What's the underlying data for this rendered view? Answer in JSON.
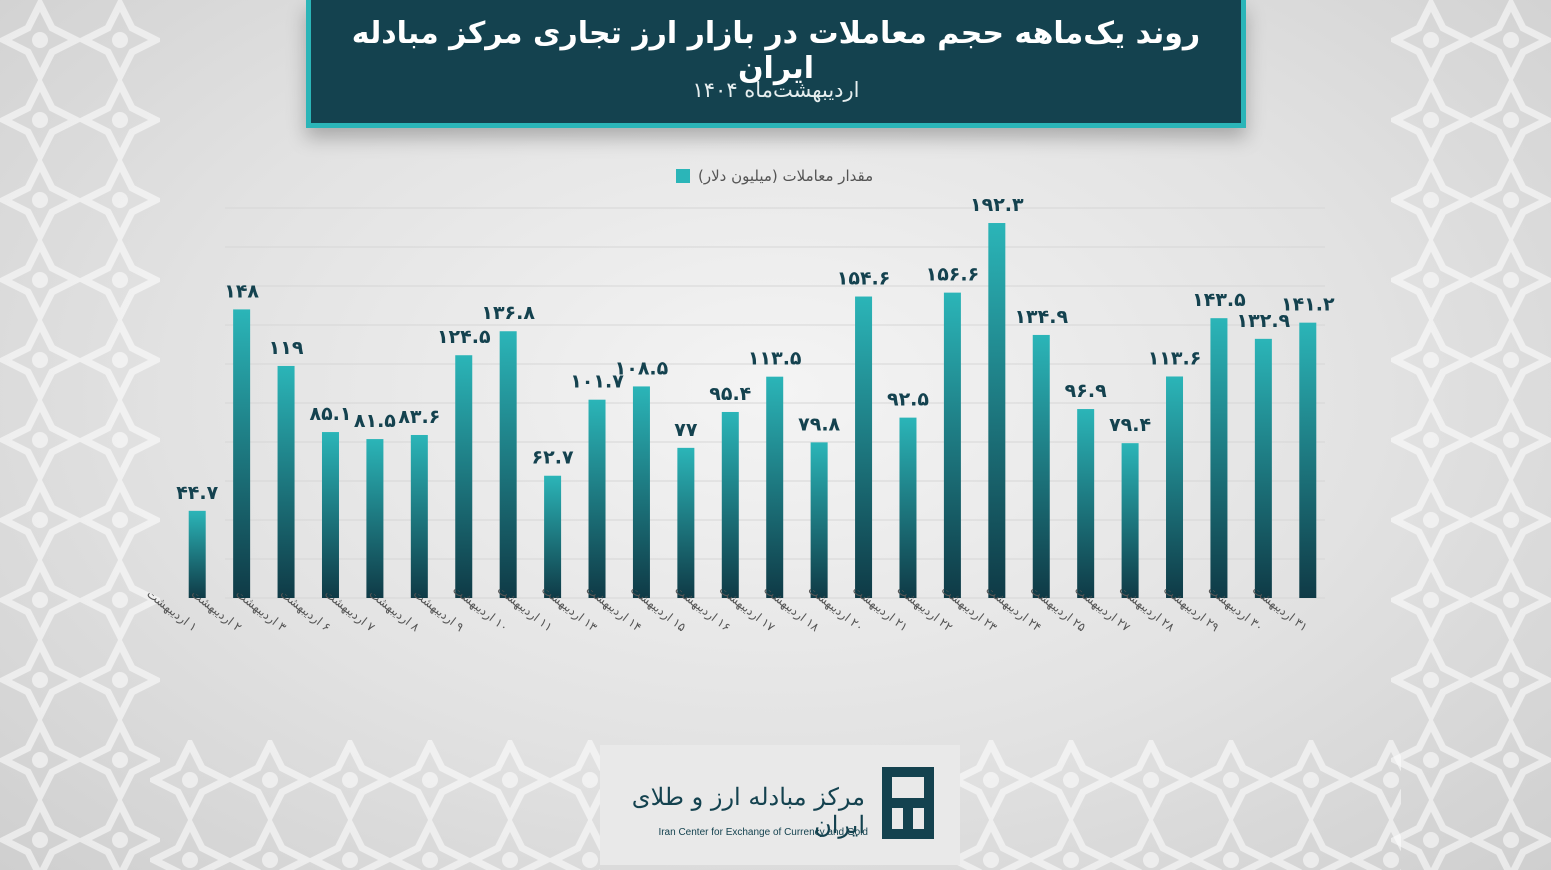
{
  "header": {
    "title": "روند یک‌ماهه حجم معاملات در بازار ارز تجاری مرکز مبادله ایران",
    "subtitle": "اردیبهشت‌ماه ۱۴۰۴"
  },
  "legend": {
    "label": "مقدار معاملات (میلیون دلار)"
  },
  "colors": {
    "bar_top": "#2bb5b8",
    "bar_bottom": "#0f3a46",
    "header_bg": "#14424f",
    "header_border": "#2bb5b8",
    "label_text": "#14424f"
  },
  "chart_data": {
    "type": "bar",
    "series": [
      {
        "name": "مقدار معاملات (میلیون دلار)"
      }
    ],
    "categories": [
      "۱ اردیبهشت",
      "۲ اردیبهشت",
      "۳ اردیبهشت",
      "۶ اردیبهشت",
      "۷ اردیبهشت",
      "۸ اردیبهشت",
      "۹ اردیبهشت",
      "۱۰ اردیبهشت",
      "۱۱ اردیبهشت",
      "۱۳ اردیبهشت",
      "۱۴ اردیبهشت",
      "۱۵ اردیبهشت",
      "۱۶ اردیبهشت",
      "۱۷ اردیبهشت",
      "۱۸ اردیبهشت",
      "۲۰ اردیبهشت",
      "۲۱ اردیبهشت",
      "۲۲ اردیبهشت",
      "۲۳ اردیبهشت",
      "۲۴ اردیبهشت",
      "۲۵ اردیبهشت",
      "۲۷ اردیبهشت",
      "۲۸ اردیبهشت",
      "۲۹ اردیبهشت",
      "۳۰ اردیبهشت",
      "۳۱ اردیبهشت"
    ],
    "values": [
      44.7,
      148,
      119,
      85.1,
      81.5,
      83.6,
      124.5,
      136.8,
      62.7,
      101.7,
      108.5,
      77,
      95.4,
      113.5,
      79.8,
      154.6,
      92.5,
      156.6,
      192.3,
      134.9,
      96.9,
      79.4,
      113.6,
      143.5,
      132.9,
      141.2
    ],
    "value_labels": [
      "۴۴.۷",
      "۱۴۸",
      "۱۱۹",
      "۸۵.۱",
      "۸۱.۵",
      "۸۳.۶",
      "۱۲۴.۵",
      "۱۳۶.۸",
      "۶۲.۷",
      "۱۰۱.۷",
      "۱۰۸.۵",
      "۷۷",
      "۹۵.۴",
      "۱۱۳.۵",
      "۷۹.۸",
      "۱۵۴.۶",
      "۹۲.۵",
      "۱۵۶.۶",
      "۱۹۲.۳",
      "۱۳۴.۹",
      "۹۶.۹",
      "۷۹.۴",
      "۱۱۳.۶",
      "۱۴۳.۵",
      "۱۳۲.۹",
      "۱۴۱.۲"
    ],
    "ylim": [
      0,
      200
    ],
    "grid": true,
    "legend_position": "top-center"
  },
  "logo": {
    "name_fa": "مرکز مبادله ارز و طلای ایران",
    "name_en": "Iran Center for Exchange of Currency and Gold"
  }
}
